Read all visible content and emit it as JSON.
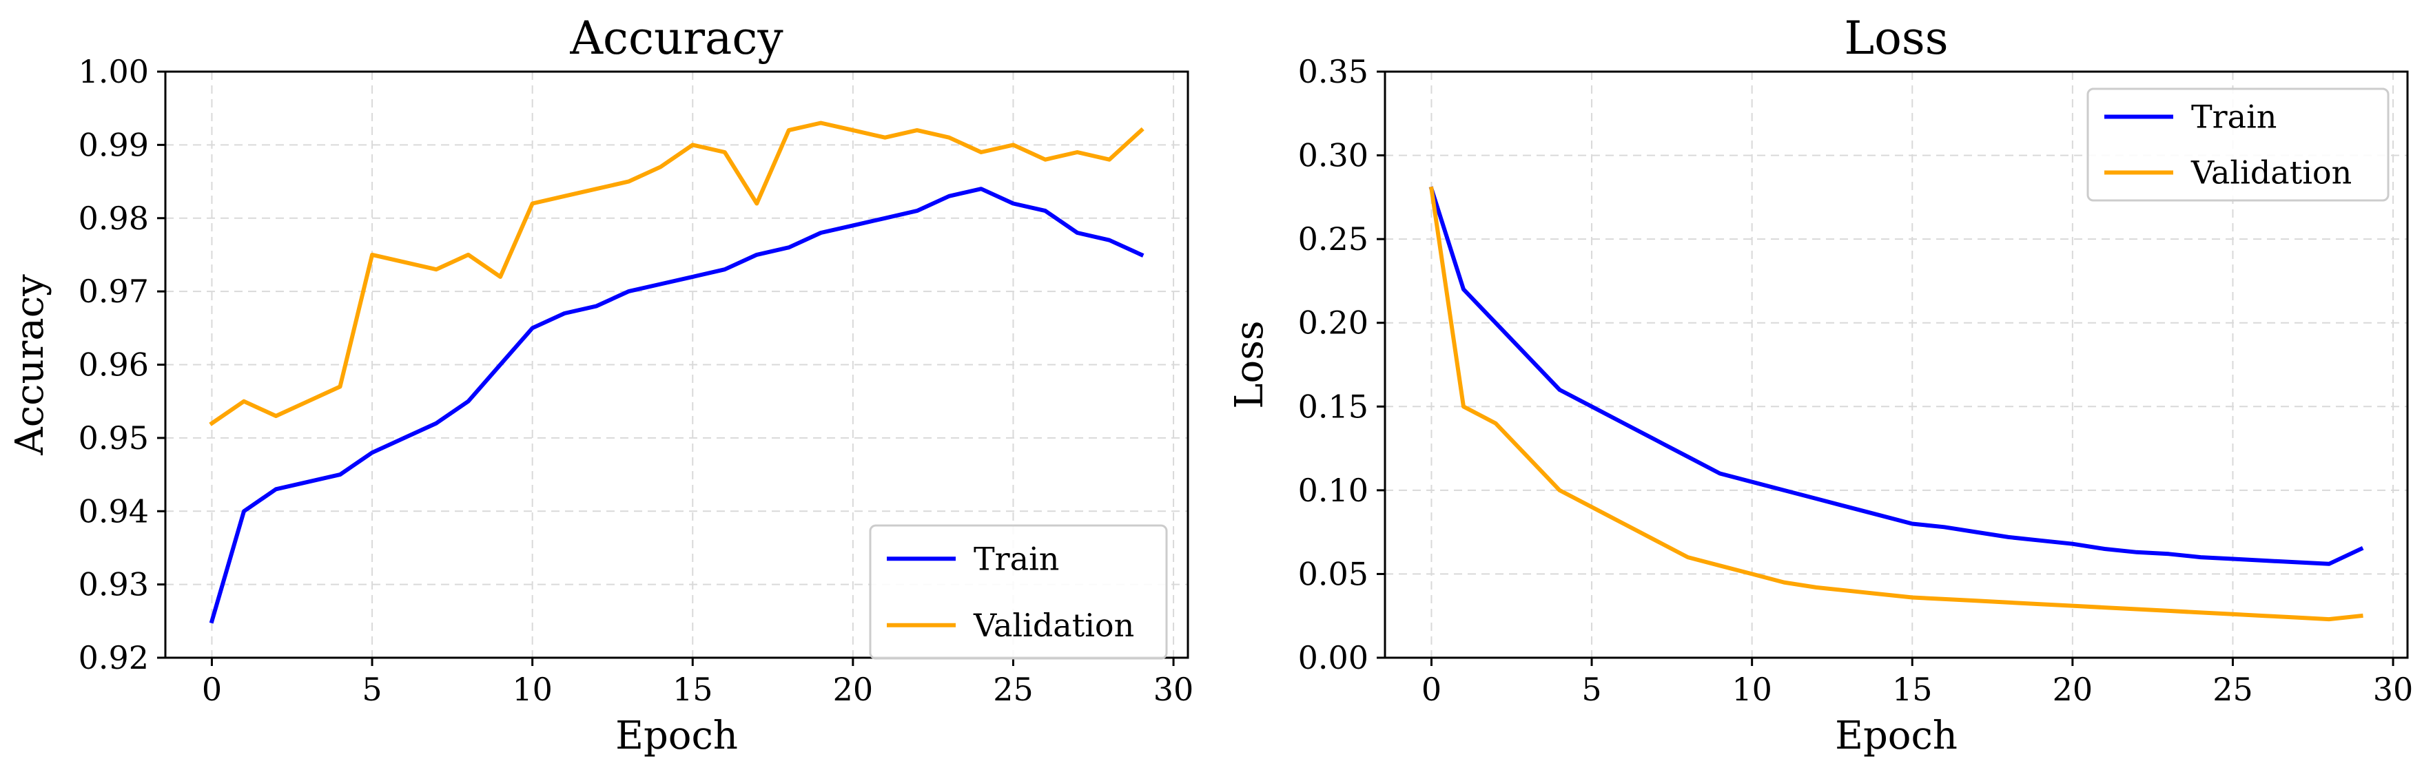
{
  "chart_data": [
    {
      "type": "line",
      "title": "Accuracy",
      "xlabel": "Epoch",
      "ylabel": "Accuracy",
      "xlim": [
        -1.45,
        30.45
      ],
      "ylim": [
        0.92,
        1.0
      ],
      "xticks": [
        0,
        5,
        10,
        15,
        20,
        25,
        30
      ],
      "xtick_labels": [
        "0",
        "5",
        "10",
        "15",
        "20",
        "25",
        "30"
      ],
      "yticks": [
        0.92,
        0.93,
        0.94,
        0.95,
        0.96,
        0.97,
        0.98,
        0.99,
        1.0
      ],
      "ytick_labels": [
        "0.92",
        "0.93",
        "0.94",
        "0.95",
        "0.96",
        "0.97",
        "0.98",
        "0.99",
        "1.00"
      ],
      "grid": true,
      "legend_position": "lower-right",
      "x": [
        0,
        1,
        2,
        3,
        4,
        5,
        6,
        7,
        8,
        9,
        10,
        11,
        12,
        13,
        14,
        15,
        16,
        17,
        18,
        19,
        20,
        21,
        22,
        23,
        24,
        25,
        26,
        27,
        28,
        29
      ],
      "series": [
        {
          "name": "Train",
          "color": "#0000ff",
          "values": [
            0.925,
            0.94,
            0.943,
            0.944,
            0.945,
            0.948,
            0.95,
            0.952,
            0.955,
            0.96,
            0.965,
            0.967,
            0.968,
            0.97,
            0.971,
            0.972,
            0.973,
            0.975,
            0.976,
            0.978,
            0.979,
            0.98,
            0.981,
            0.983,
            0.984,
            0.982,
            0.981,
            0.978,
            0.977,
            0.975
          ]
        },
        {
          "name": "Validation",
          "color": "#ffa500",
          "values": [
            0.952,
            0.955,
            0.953,
            0.955,
            0.957,
            0.975,
            0.974,
            0.973,
            0.975,
            0.972,
            0.982,
            0.983,
            0.984,
            0.985,
            0.987,
            0.99,
            0.989,
            0.982,
            0.992,
            0.993,
            0.992,
            0.991,
            0.992,
            0.991,
            0.989,
            0.99,
            0.988,
            0.989,
            0.988,
            0.992
          ]
        }
      ]
    },
    {
      "type": "line",
      "title": "Loss",
      "xlabel": "Epoch",
      "ylabel": "Loss",
      "xlim": [
        -1.45,
        30.45
      ],
      "ylim": [
        0.0,
        0.35
      ],
      "xticks": [
        0,
        5,
        10,
        15,
        20,
        25,
        30
      ],
      "xtick_labels": [
        "0",
        "5",
        "10",
        "15",
        "20",
        "25",
        "30"
      ],
      "yticks": [
        0.0,
        0.05,
        0.1,
        0.15,
        0.2,
        0.25,
        0.3,
        0.35
      ],
      "ytick_labels": [
        "0.00",
        "0.05",
        "0.10",
        "0.15",
        "0.20",
        "0.25",
        "0.30",
        "0.35"
      ],
      "grid": true,
      "legend_position": "upper-right",
      "x": [
        0,
        1,
        2,
        3,
        4,
        5,
        6,
        7,
        8,
        9,
        10,
        11,
        12,
        13,
        14,
        15,
        16,
        17,
        18,
        19,
        20,
        21,
        22,
        23,
        24,
        25,
        26,
        27,
        28,
        29
      ],
      "series": [
        {
          "name": "Train",
          "color": "#0000ff",
          "values": [
            0.28,
            0.22,
            0.2,
            0.18,
            0.16,
            0.15,
            0.14,
            0.13,
            0.12,
            0.11,
            0.105,
            0.1,
            0.095,
            0.09,
            0.085,
            0.08,
            0.078,
            0.075,
            0.072,
            0.07,
            0.068,
            0.065,
            0.063,
            0.062,
            0.06,
            0.059,
            0.058,
            0.057,
            0.056,
            0.065
          ]
        },
        {
          "name": "Validation",
          "color": "#ffa500",
          "values": [
            0.28,
            0.15,
            0.14,
            0.12,
            0.1,
            0.09,
            0.08,
            0.07,
            0.06,
            0.055,
            0.05,
            0.045,
            0.042,
            0.04,
            0.038,
            0.036,
            0.035,
            0.034,
            0.033,
            0.032,
            0.031,
            0.03,
            0.029,
            0.028,
            0.027,
            0.026,
            0.025,
            0.024,
            0.023,
            0.025
          ]
        }
      ]
    }
  ]
}
